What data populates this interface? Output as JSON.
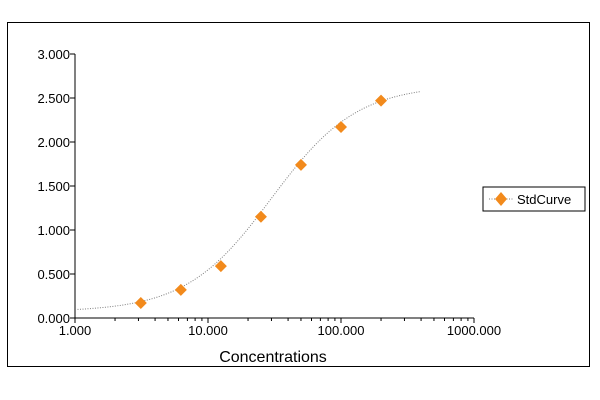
{
  "chart_data": {
    "type": "scatter",
    "xlabel": "Concentrations",
    "ylabel": "",
    "x_scale": "log",
    "xlim": [
      1,
      1000
    ],
    "ylim": [
      0,
      3
    ],
    "x_ticks": [
      1,
      10,
      100,
      1000
    ],
    "x_tick_labels": [
      "1.000",
      "10.000",
      "100.000",
      "1000.000"
    ],
    "y_ticks": [
      0,
      0.5,
      1,
      1.5,
      2,
      2.5,
      3
    ],
    "y_tick_labels": [
      "0.000",
      "0.500",
      "1.000",
      "1.500",
      "2.000",
      "2.500",
      "3.000"
    ],
    "grid": false,
    "legend_position": "right",
    "series": [
      {
        "name": "StdCurve",
        "color": "#f28a1c",
        "marker": "diamond",
        "x": [
          3.125,
          6.25,
          12.5,
          25,
          50,
          100,
          200
        ],
        "y": [
          0.17,
          0.32,
          0.59,
          1.15,
          1.74,
          2.17,
          2.47
        ]
      }
    ],
    "fit_curve": {
      "model": "4PL",
      "color": "#7f7f7f",
      "style": "dotted",
      "x_range": [
        1,
        400
      ],
      "a": 0.07,
      "d": 2.65,
      "c": 30,
      "b": 1.35
    }
  }
}
